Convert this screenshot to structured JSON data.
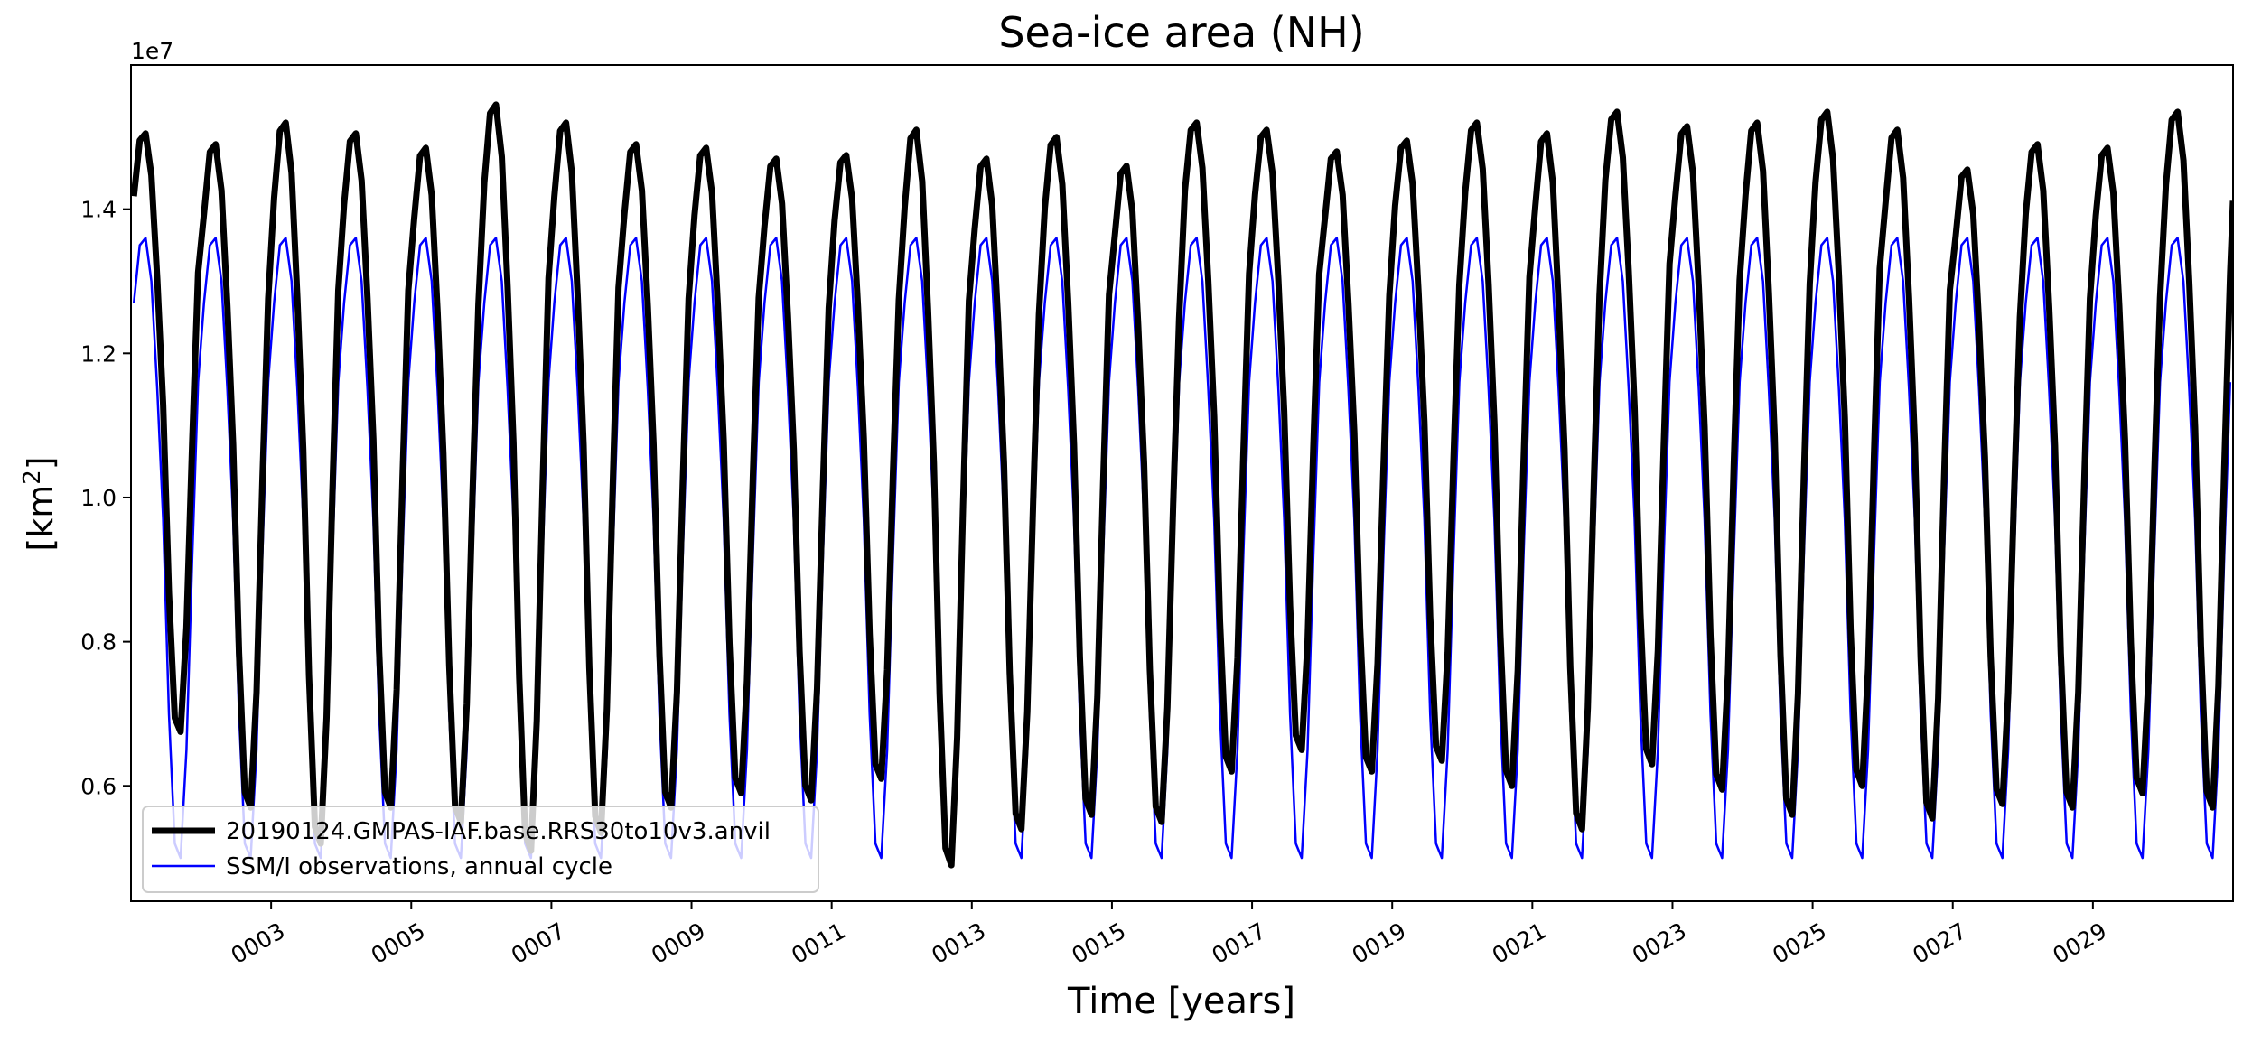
{
  "chart_data": {
    "type": "line",
    "title": "Sea-ice area (NH)",
    "xlabel": "Time [years]",
    "ylabel_base": "[km",
    "ylabel_sup": "2",
    "ylabel_end": "]",
    "offset_text": "1e7",
    "x_ticks": [
      "0003",
      "0005",
      "0007",
      "0009",
      "0011",
      "0013",
      "0015",
      "0017",
      "0019",
      "0021",
      "0023",
      "0025",
      "0027",
      "0029"
    ],
    "x_tick_years": [
      3,
      5,
      7,
      9,
      11,
      13,
      15,
      17,
      19,
      21,
      23,
      25,
      27,
      29
    ],
    "y_ticks": [
      "0.6",
      "0.8",
      "1.0",
      "1.2",
      "1.4"
    ],
    "y_tick_values": [
      0.6,
      0.8,
      1.0,
      1.2,
      1.4
    ],
    "xlim": [
      1.0,
      31.0
    ],
    "ylim": [
      0.44,
      1.6
    ],
    "y_unit_multiplier": 10000000,
    "legend_position": "lower left",
    "grid": false,
    "observations_climatology": [
      1.27,
      1.35,
      1.36,
      1.3,
      1.15,
      0.97,
      0.7,
      0.52,
      0.5,
      0.65,
      0.92,
      1.16
    ],
    "series": [
      {
        "name": "20190124.GMPAS-IAF.base.RRS30to10v3.anvil",
        "color": "#000000",
        "annual_max": [
          1.505,
          1.49,
          1.52,
          1.505,
          1.485,
          1.545,
          1.52,
          1.49,
          1.485,
          1.47,
          1.475,
          1.51,
          1.47,
          1.5,
          1.46,
          1.52,
          1.51,
          1.48,
          1.495,
          1.52,
          1.505,
          1.535,
          1.515,
          1.52,
          1.535,
          1.51,
          1.455,
          1.49,
          1.485,
          1.535
        ],
        "annual_min": [
          0.675,
          0.57,
          0.52,
          0.57,
          0.55,
          0.51,
          0.535,
          0.57,
          0.59,
          0.58,
          0.61,
          0.49,
          0.54,
          0.56,
          0.55,
          0.62,
          0.65,
          0.62,
          0.635,
          0.6,
          0.54,
          0.63,
          0.595,
          0.56,
          0.6,
          0.555,
          0.575,
          0.57,
          0.59,
          0.57
        ]
      },
      {
        "name": "SSM/I observations, annual cycle",
        "color": "#0000ff"
      }
    ]
  }
}
